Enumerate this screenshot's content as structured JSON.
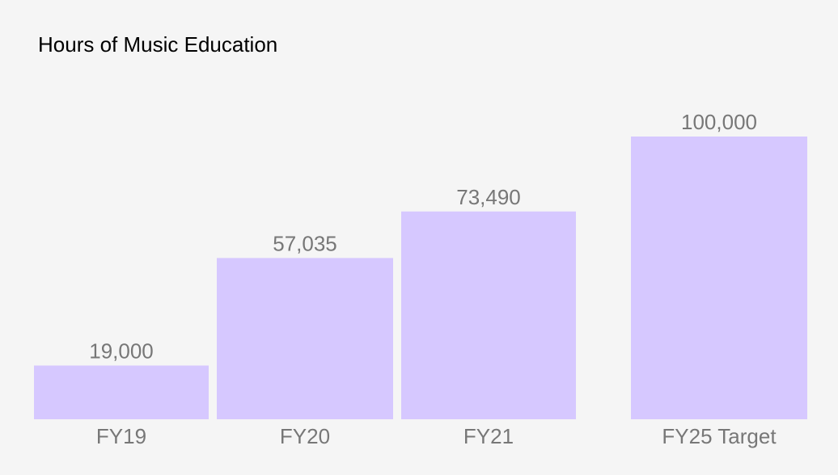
{
  "chart_data": {
    "type": "bar",
    "title": "Hours of Music Education",
    "categories": [
      "FY19",
      "FY20",
      "FY21",
      "FY25 Target"
    ],
    "values": [
      19000,
      57035,
      73490,
      100000
    ],
    "value_labels": [
      "19,000",
      "57,035",
      "73,490",
      "100,000"
    ],
    "xlabel": "",
    "ylabel": "",
    "ylim": [
      0,
      100000
    ],
    "grid": false,
    "legend": "none",
    "bar_color": "#d6c8ff"
  }
}
